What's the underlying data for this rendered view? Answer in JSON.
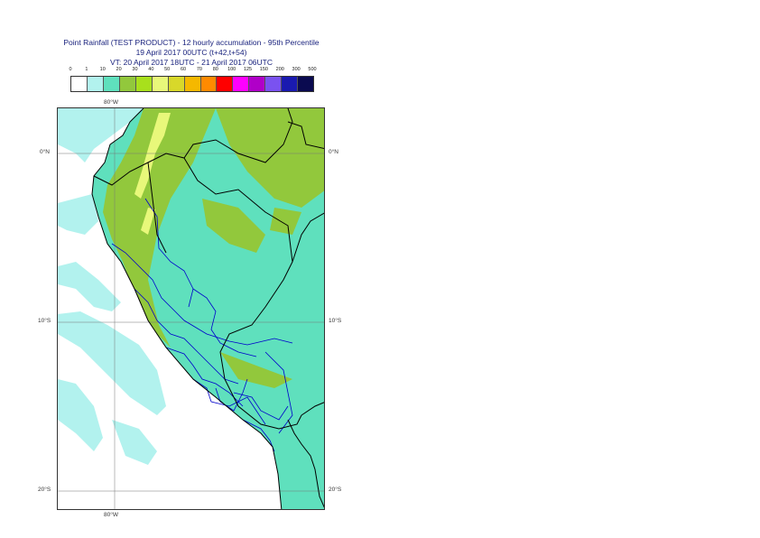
{
  "title": {
    "line1": "Point Rainfall (TEST PRODUCT) - 12 hourly accumulation - 95th Percentile",
    "line2": "19 April 2017 00UTC (t+42,t+54)",
    "line3": "VT: 20 April 2017 18UTC - 21 April 2017 06UTC"
  },
  "legend": {
    "ticks": [
      "0",
      "1",
      "10",
      "20",
      "30",
      "40",
      "50",
      "60",
      "70",
      "80",
      "100",
      "125",
      "150",
      "200",
      "300",
      "500"
    ],
    "colors": [
      "#ffffff",
      "#b2f2ee",
      "#5fe0bd",
      "#92c83c",
      "#a8e01c",
      "#e8f87a",
      "#d8d82a",
      "#f5b800",
      "#ff8a00",
      "#ff0000",
      "#ff00ff",
      "#b000c8",
      "#7a52f0",
      "#1a1ab0",
      "#0a0a50"
    ]
  },
  "axes": {
    "lon_top": "80°W",
    "lon_bottom": "80°W",
    "lat_0_left": "0°N",
    "lat_0_right": "0°N",
    "lat_10_left": "10°S",
    "lat_10_right": "10°S",
    "lat_20_left": "20°S",
    "lat_20_right": "20°S"
  },
  "map": {
    "land_color": "#5fe0bd",
    "light_color": "#b2f2ee",
    "heavy_color": "#92c83c",
    "peak_color": "#e8f87a",
    "border_national": "#000000",
    "border_regional": "#0000cc"
  }
}
